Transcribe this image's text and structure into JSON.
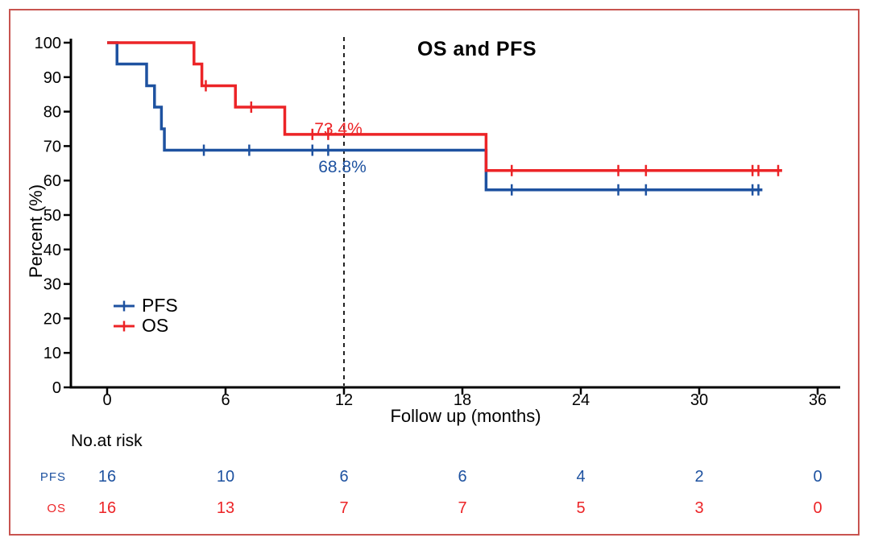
{
  "frame": {
    "border_color": "#C85450",
    "background": "#FFFFFF"
  },
  "chart_data": {
    "type": "line",
    "subtype": "kaplan-meier-step",
    "title": "OS and PFS",
    "xlabel": "Follow up (months)",
    "ylabel": "Percent (%)",
    "xlim": [
      0,
      37
    ],
    "ylim": [
      0,
      100
    ],
    "x_ticks": [
      0,
      6,
      12,
      18,
      24,
      30,
      36
    ],
    "y_ticks": [
      0,
      10,
      20,
      30,
      40,
      50,
      60,
      70,
      80,
      90,
      100
    ],
    "grid": false,
    "legend_position": "inside-lower-left",
    "reference_line": {
      "x": 12,
      "style": "dashed",
      "color": "#222222"
    },
    "series": [
      {
        "name": "PFS",
        "color": "#1E52A0",
        "steps": [
          [
            0,
            100
          ],
          [
            0.5,
            100
          ],
          [
            0.5,
            93.8
          ],
          [
            2.0,
            93.8
          ],
          [
            2.0,
            87.5
          ],
          [
            2.4,
            87.5
          ],
          [
            2.4,
            81.3
          ],
          [
            2.75,
            81.3
          ],
          [
            2.75,
            75.0
          ],
          [
            2.9,
            75.0
          ],
          [
            2.9,
            68.8
          ],
          [
            19.2,
            68.8
          ],
          [
            19.2,
            57.3
          ],
          [
            33.2,
            57.3
          ]
        ],
        "censor_marks": [
          [
            4.9,
            68.8
          ],
          [
            7.2,
            68.8
          ],
          [
            10.4,
            68.8
          ],
          [
            11.2,
            68.8
          ],
          [
            20.5,
            57.3
          ],
          [
            25.9,
            57.3
          ],
          [
            27.3,
            57.3
          ],
          [
            32.7,
            57.3
          ],
          [
            33.0,
            57.3
          ]
        ],
        "annotation": {
          "text": "68.8%",
          "x": 11.9,
          "y": 62.0
        }
      },
      {
        "name": "OS",
        "color": "#EC2427",
        "steps": [
          [
            0,
            100
          ],
          [
            4.4,
            100
          ],
          [
            4.4,
            93.8
          ],
          [
            4.8,
            93.8
          ],
          [
            4.8,
            87.5
          ],
          [
            6.5,
            87.5
          ],
          [
            6.5,
            81.3
          ],
          [
            9.0,
            81.3
          ],
          [
            9.0,
            73.4
          ],
          [
            19.2,
            73.4
          ],
          [
            19.2,
            62.9
          ],
          [
            34.2,
            62.9
          ]
        ],
        "censor_marks": [
          [
            5.0,
            87.5
          ],
          [
            7.3,
            81.3
          ],
          [
            10.4,
            73.4
          ],
          [
            11.2,
            73.4
          ],
          [
            20.5,
            62.9
          ],
          [
            25.9,
            62.9
          ],
          [
            27.3,
            62.9
          ],
          [
            32.7,
            62.9
          ],
          [
            33.0,
            62.9
          ],
          [
            34.0,
            62.9
          ]
        ],
        "annotation": {
          "text": "73.4%",
          "x": 11.75,
          "y": 73.0
        }
      }
    ],
    "risk_table": {
      "title": "No.at risk",
      "time_points": [
        0,
        6,
        12,
        18,
        24,
        30,
        36
      ],
      "rows": [
        {
          "name": "PFS",
          "color": "#1E52A0",
          "values": [
            16,
            10,
            6,
            6,
            4,
            2,
            0
          ]
        },
        {
          "name": "OS",
          "color": "#EC2427",
          "values": [
            16,
            13,
            7,
            7,
            5,
            3,
            0
          ]
        }
      ]
    }
  }
}
